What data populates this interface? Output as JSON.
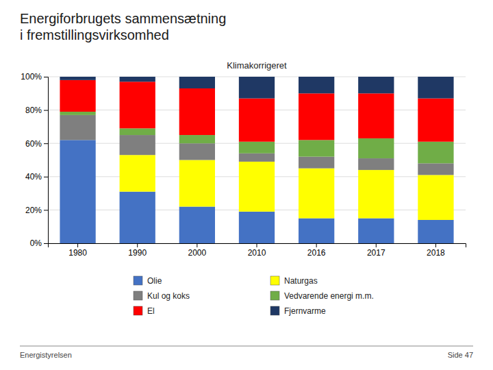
{
  "chart_data": {
    "type": "bar",
    "stacked": true,
    "title": "Energiforbrugets sammensætning\ni fremstillingsvirksomhed",
    "subtitle": "Klimakorrigeret",
    "annotations": [
      "Energistyrelsen",
      "Side 47"
    ],
    "categories": [
      "1980",
      "1990",
      "2000",
      "2010",
      "2016",
      "2017",
      "2018"
    ],
    "series": [
      {
        "name": "Olie",
        "color": "#4472C4",
        "values": [
          0.62,
          0.31,
          0.22,
          0.19,
          0.15,
          0.15,
          0.14
        ]
      },
      {
        "name": "Naturgas",
        "color": "#FFFF00",
        "values": [
          0.0,
          0.22,
          0.28,
          0.3,
          0.3,
          0.29,
          0.27
        ]
      },
      {
        "name": "Kul og koks",
        "color": "#7F7F7F",
        "values": [
          0.15,
          0.12,
          0.1,
          0.05,
          0.07,
          0.07,
          0.07
        ]
      },
      {
        "name": "Vedvarende energi m.m.",
        "color": "#70AD47",
        "values": [
          0.02,
          0.04,
          0.05,
          0.07,
          0.1,
          0.12,
          0.13
        ]
      },
      {
        "name": "El",
        "color": "#FF0000",
        "values": [
          0.19,
          0.28,
          0.28,
          0.26,
          0.28,
          0.27,
          0.26
        ]
      },
      {
        "name": "Fjernvarme",
        "color": "#1F3864",
        "values": [
          0.02,
          0.03,
          0.07,
          0.13,
          0.1,
          0.1,
          0.13
        ]
      }
    ],
    "ylim": [
      0,
      1.0
    ],
    "yticks": [
      {
        "value": 0,
        "label": "0%"
      },
      {
        "value": 0.2,
        "label": "20%"
      },
      {
        "value": 0.4,
        "label": "40%"
      },
      {
        "value": 0.6,
        "label": "60%"
      },
      {
        "value": 0.8,
        "label": "80%"
      },
      {
        "value": 1.0,
        "label": "100%"
      }
    ],
    "grid": true,
    "legend": "bottom"
  }
}
